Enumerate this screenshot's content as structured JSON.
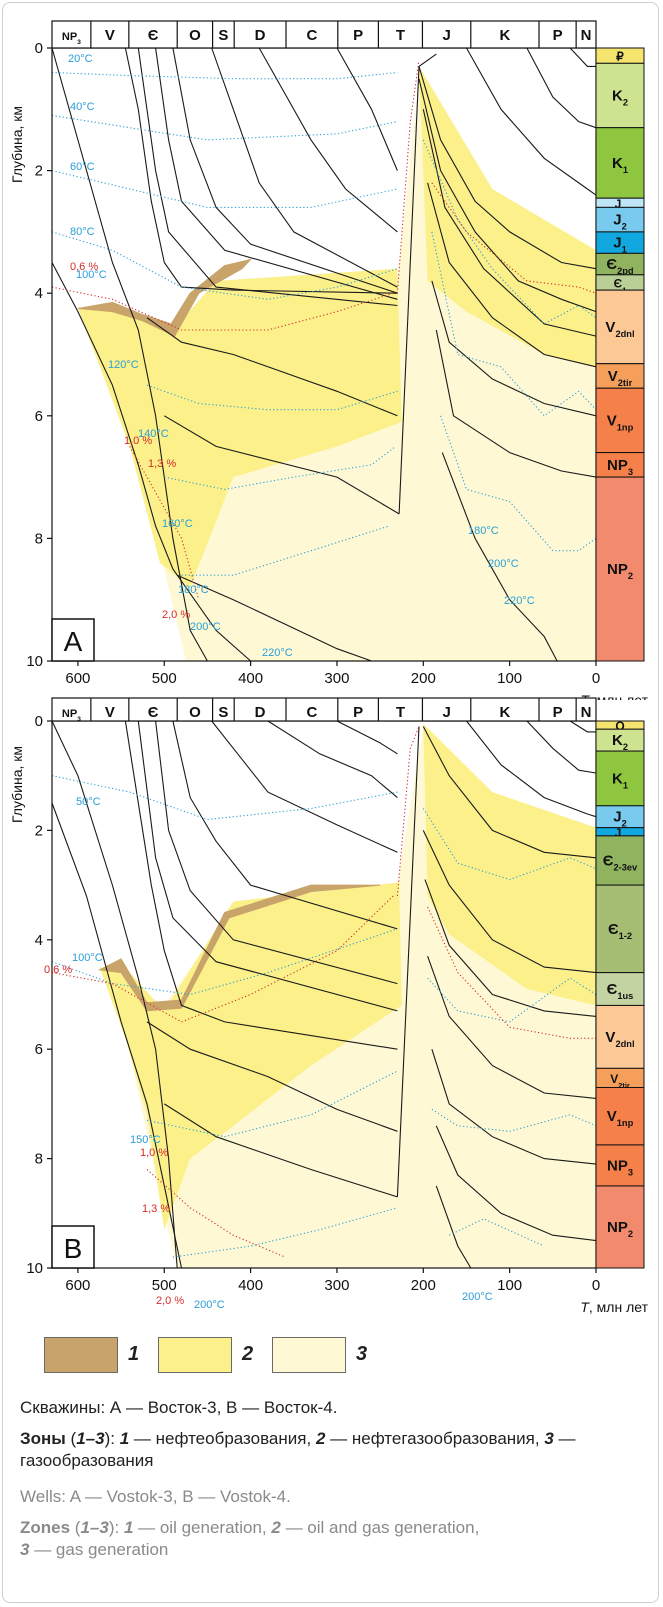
{
  "colors": {
    "oil": "#c8a46a",
    "oilgas": "#fbf08a",
    "gas": "#fef9d4",
    "temp_iso": "#2a9fd6",
    "ro_iso": "#d42a2a",
    "line": "#1a1a1a"
  },
  "chart_data": [
    {
      "type": "area",
      "panel_label": "A",
      "xlabel": "T, млн лет",
      "ylabel": "Глубина, км",
      "xlim": [
        630,
        0
      ],
      "ylim": [
        10,
        0
      ],
      "x_ticks": [
        "600",
        "500",
        "400",
        "300",
        "200",
        "100",
        "0"
      ],
      "y_ticks": [
        "0",
        "2",
        "4",
        "6",
        "8",
        "10"
      ],
      "periods": [
        {
          "label": "NP3",
          "from": 630,
          "to": 585
        },
        {
          "label": "V",
          "from": 585,
          "to": 541
        },
        {
          "label": "Є",
          "from": 541,
          "to": 485
        },
        {
          "label": "O",
          "from": 485,
          "to": 444
        },
        {
          "label": "S",
          "from": 444,
          "to": 419
        },
        {
          "label": "D",
          "from": 419,
          "to": 359
        },
        {
          "label": "C",
          "from": 359,
          "to": 299
        },
        {
          "label": "P",
          "from": 299,
          "to": 252
        },
        {
          "label": "T",
          "from": 252,
          "to": 201
        },
        {
          "label": "J",
          "from": 201,
          "to": 145
        },
        {
          "label": "K",
          "from": 145,
          "to": 66
        },
        {
          "label": "P",
          "from": 66,
          "to": 23
        },
        {
          "label": "N",
          "from": 23,
          "to": 0
        }
      ],
      "strat_column": [
        {
          "label": "₽",
          "top": 0,
          "bottom": 0.25,
          "color": "#f5e56e"
        },
        {
          "label": "K2",
          "top": 0.25,
          "bottom": 1.3,
          "color": "#cde38f"
        },
        {
          "label": "K1",
          "top": 1.3,
          "bottom": 2.45,
          "color": "#8fc63f"
        },
        {
          "label": "J3",
          "top": 2.45,
          "bottom": 2.6,
          "color": "#bfe6f6"
        },
        {
          "label": "J2",
          "top": 2.6,
          "bottom": 3.0,
          "color": "#78cbee"
        },
        {
          "label": "J1",
          "top": 3.0,
          "bottom": 3.35,
          "color": "#10a8df"
        },
        {
          "label": "Є2pd",
          "top": 3.35,
          "bottom": 3.7,
          "color": "#8fb35f"
        },
        {
          "label": "Є1",
          "top": 3.7,
          "bottom": 3.95,
          "color": "#b9cf96"
        },
        {
          "label": "V2dnl",
          "top": 3.95,
          "bottom": 5.15,
          "color": "#fbc896"
        },
        {
          "label": "V2tir",
          "top": 5.15,
          "bottom": 5.55,
          "color": "#f59f5a"
        },
        {
          "label": "V1np",
          "top": 5.55,
          "bottom": 6.6,
          "color": "#f5804a"
        },
        {
          "label": "NP3",
          "top": 6.6,
          "bottom": 7.0,
          "color": "#f5804a"
        },
        {
          "label": "NP2",
          "top": 7.0,
          "bottom": 10,
          "color": "#f28a6e"
        }
      ],
      "temperature_labels": [
        "20°C",
        "40°C",
        "60°C",
        "80°C",
        "100°C",
        "120°C",
        "140°C",
        "160°C",
        "180°C",
        "200°C",
        "220°C",
        "180°C",
        "200°C",
        "220°C"
      ],
      "ro_labels": [
        "0,6 %",
        "1,0 %",
        "1,3 %",
        "2,0 %"
      ]
    },
    {
      "type": "area",
      "panel_label": "B",
      "xlabel": "T, млн лет",
      "ylabel": "Глубина, км",
      "xlim": [
        630,
        0
      ],
      "ylim": [
        10,
        0
      ],
      "x_ticks": [
        "600",
        "500",
        "400",
        "300",
        "200",
        "100",
        "0"
      ],
      "y_ticks": [
        "0",
        "2",
        "4",
        "6",
        "8",
        "10"
      ],
      "periods": [
        {
          "label": "NP3",
          "from": 630,
          "to": 585
        },
        {
          "label": "V",
          "from": 585,
          "to": 541
        },
        {
          "label": "Є",
          "from": 541,
          "to": 485
        },
        {
          "label": "O",
          "from": 485,
          "to": 444
        },
        {
          "label": "S",
          "from": 444,
          "to": 419
        },
        {
          "label": "D",
          "from": 419,
          "to": 359
        },
        {
          "label": "C",
          "from": 359,
          "to": 299
        },
        {
          "label": "P",
          "from": 299,
          "to": 252
        },
        {
          "label": "T",
          "from": 252,
          "to": 201
        },
        {
          "label": "J",
          "from": 201,
          "to": 145
        },
        {
          "label": "K",
          "from": 145,
          "to": 66
        },
        {
          "label": "P",
          "from": 66,
          "to": 23
        },
        {
          "label": "N",
          "from": 23,
          "to": 0
        }
      ],
      "strat_column": [
        {
          "label": "Q",
          "top": 0,
          "bottom": 0.15,
          "color": "#f5e56e"
        },
        {
          "label": "K2",
          "top": 0.15,
          "bottom": 0.55,
          "color": "#cde38f"
        },
        {
          "label": "K1",
          "top": 0.55,
          "bottom": 1.55,
          "color": "#8fc63f"
        },
        {
          "label": "J2",
          "top": 1.55,
          "bottom": 1.95,
          "color": "#78cbee"
        },
        {
          "label": "J1",
          "top": 1.95,
          "bottom": 2.1,
          "color": "#10a8df"
        },
        {
          "label": "Є2-3ev",
          "top": 2.1,
          "bottom": 3.0,
          "color": "#8fb35f"
        },
        {
          "label": "Є1-2",
          "top": 3.0,
          "bottom": 4.6,
          "color": "#a6bd74"
        },
        {
          "label": "Є1us",
          "top": 4.6,
          "bottom": 5.2,
          "color": "#c3d4a2"
        },
        {
          "label": "V2dnl",
          "top": 5.2,
          "bottom": 6.35,
          "color": "#fbc896"
        },
        {
          "label": "V2tir",
          "top": 6.35,
          "bottom": 6.7,
          "color": "#f59f5a"
        },
        {
          "label": "V1np",
          "top": 6.7,
          "bottom": 7.75,
          "color": "#f5804a"
        },
        {
          "label": "NP3",
          "top": 7.75,
          "bottom": 8.5,
          "color": "#f5804a"
        },
        {
          "label": "NP2",
          "top": 8.5,
          "bottom": 10,
          "color": "#f28a6e"
        }
      ],
      "temperature_labels": [
        "50°C",
        "100°C",
        "150°C",
        "200°C",
        "200°C"
      ],
      "ro_labels": [
        "0,6 %",
        "1,0 %",
        "1,3 %",
        "2,0 %"
      ]
    }
  ],
  "legend": {
    "items": [
      "1",
      "2",
      "3"
    ]
  },
  "caption": {
    "ru_wells": "Скважины: А — Восток-3, В — Восток-4.",
    "ru_zones_head": "Зоны",
    "ru_zones_open": " (",
    "ru_zones_range": "1–3",
    "ru_zones_close": "): ",
    "ru_z1_num": "1",
    "ru_z1_text": " — нефтеобразования, ",
    "ru_z2_num": "2",
    "ru_z2_text": " — нефтегазообразования, ",
    "ru_z3_num": "3",
    "ru_z3_text": " — газообразования",
    "en_wells": "Wells: A — Vostok-3, B — Vostok-4.",
    "en_zones_head": "Zones",
    "en_zones_open": " (",
    "en_zones_range": "1–3",
    "en_zones_close": "): ",
    "en_z1_num": "1",
    "en_z1_text": " — oil generation, ",
    "en_z2_num": "2",
    "en_z2_text": " — oil and gas generation,",
    "en_z3_num": "3",
    "en_z3_text": " — gas generation"
  }
}
